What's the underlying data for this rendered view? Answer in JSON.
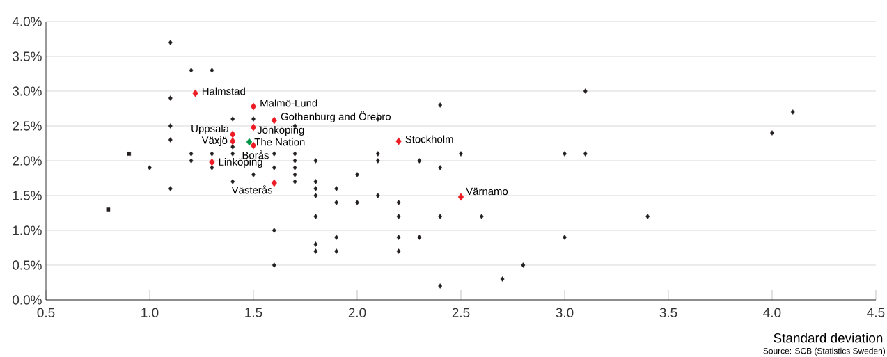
{
  "chart_data": {
    "type": "scatter",
    "xlabel": "Standard deviation",
    "xlim": [
      0.5,
      4.5
    ],
    "ylim": [
      0,
      4
    ],
    "xticks": [
      {
        "value": 0.5,
        "label": "0.5"
      },
      {
        "value": 1,
        "label": "1.0"
      },
      {
        "value": 1.5,
        "label": "1.5"
      },
      {
        "value": 2,
        "label": "2.0"
      },
      {
        "value": 2.5,
        "label": "2.5"
      },
      {
        "value": 3,
        "label": "3.0"
      },
      {
        "value": 3.5,
        "label": "3.5"
      },
      {
        "value": 4,
        "label": "4.0"
      },
      {
        "value": 4.5,
        "label": "4.5"
      }
    ],
    "yticks": [
      {
        "value": 0,
        "label": "0.0%"
      },
      {
        "value": 0.5,
        "label": "0.5%"
      },
      {
        "value": 1,
        "label": "1.0%"
      },
      {
        "value": 1.5,
        "label": "1.5%"
      },
      {
        "value": 2,
        "label": "2.0%"
      },
      {
        "value": 2.5,
        "label": "2.5%"
      },
      {
        "value": 3,
        "label": "3.0%"
      },
      {
        "value": 3.5,
        "label": "3.5%"
      },
      {
        "value": 4,
        "label": "4.0%"
      }
    ],
    "grid": "y",
    "marker": "diamond",
    "series": [
      {
        "color": "#231f20",
        "x": [
          1.1,
          1.2,
          1.3,
          1.1,
          1.1,
          1.1,
          1.1,
          1.0,
          1.2,
          1.2,
          1.3,
          1.3,
          1.4,
          1.4,
          1.4,
          1.4,
          1.5,
          1.5,
          1.6,
          1.6,
          1.6,
          1.6,
          1.7,
          1.7,
          1.7,
          1.7,
          1.7,
          1.7,
          1.8,
          1.8,
          1.8,
          1.8,
          1.8,
          1.8,
          1.8,
          1.9,
          1.9,
          1.9,
          1.9,
          2.0,
          2.0,
          2.1,
          2.1,
          2.1,
          2.1,
          2.2,
          2.2,
          2.2,
          2.2,
          2.3,
          2.3,
          2.4,
          2.4,
          2.4,
          2.4,
          2.5,
          2.6,
          2.7,
          2.8,
          3.0,
          3.0,
          3.1,
          3.1,
          3.4,
          4.0,
          4.1
        ],
        "values": [
          3.7,
          3.3,
          3.3,
          2.9,
          2.5,
          2.3,
          1.6,
          1.9,
          2.1,
          2.0,
          2.1,
          1.9,
          2.6,
          2.2,
          2.1,
          1.7,
          2.6,
          1.8,
          2.1,
          1.9,
          1.0,
          0.5,
          2.5,
          2.1,
          2.0,
          1.9,
          1.8,
          1.7,
          2.0,
          1.7,
          1.6,
          1.5,
          1.2,
          0.8,
          0.7,
          1.6,
          1.4,
          0.9,
          0.7,
          1.8,
          1.4,
          2.6,
          2.1,
          2.0,
          1.5,
          1.4,
          1.2,
          0.9,
          0.7,
          2.0,
          0.9,
          2.8,
          1.9,
          1.2,
          0.2,
          2.1,
          1.2,
          0.3,
          0.5,
          2.1,
          0.9,
          3.0,
          2.1,
          1.2,
          2.4,
          2.7
        ]
      },
      {
        "color": "#231f20",
        "marker": "square",
        "x": [
          0.9,
          0.8
        ],
        "values": [
          2.1,
          1.3
        ]
      },
      {
        "color": "#ed1c24",
        "x": [
          1.22,
          1.5,
          1.6,
          1.4,
          1.5,
          1.4,
          1.5,
          1.3,
          1.6,
          2.2,
          2.5
        ],
        "values": [
          2.97,
          2.78,
          2.58,
          2.38,
          2.48,
          2.28,
          2.22,
          1.98,
          1.68,
          2.28,
          1.48
        ]
      },
      {
        "color": "#009444",
        "x": [
          1.48
        ],
        "values": [
          2.27
        ]
      }
    ],
    "annotations": [
      {
        "text": "Halmstad",
        "x": 1.22,
        "y": 2.97
      },
      {
        "text": "Malmö-Lund",
        "x": 1.5,
        "y": 2.78
      },
      {
        "text": "Gothenburg and Örebro",
        "x": 1.6,
        "y": 2.58
      },
      {
        "text": "Uppsala",
        "x": 1.4,
        "y": 2.38
      },
      {
        "text": "Jönköping",
        "x": 1.5,
        "y": 2.48
      },
      {
        "text": "Växjö",
        "x": 1.4,
        "y": 2.28
      },
      {
        "text": "The Nation",
        "x": 1.48,
        "y": 2.27
      },
      {
        "text": "Borås",
        "x": 1.5,
        "y": 2.22
      },
      {
        "text": "Linköping",
        "x": 1.3,
        "y": 1.98
      },
      {
        "text": "Västerås",
        "x": 1.6,
        "y": 1.68
      },
      {
        "text": "Stockholm",
        "x": 2.2,
        "y": 2.28
      },
      {
        "text": "Värnamo",
        "x": 2.5,
        "y": 1.48
      },
      "Source: SCB (Statistics Sweden)"
    ]
  }
}
